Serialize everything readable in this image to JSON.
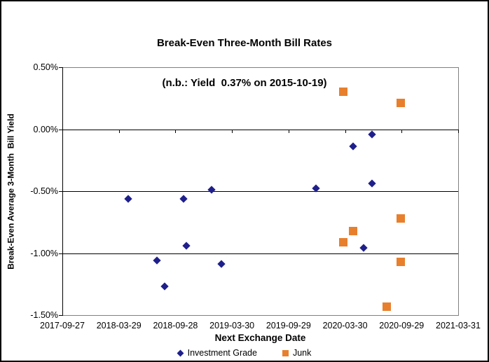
{
  "chart_data": {
    "type": "scatter",
    "title": "Break-Even Three-Month Bill Rates",
    "subtitle": "(n.b.: Yield  0.37% on 2015-10-19)",
    "x_axis": {
      "label": "Next Exchange Date",
      "range": [
        "2017-09-27",
        "2021-03-31"
      ],
      "ticks": [
        "2017-09-27",
        "2018-03-29",
        "2018-09-28",
        "2019-03-30",
        "2019-09-29",
        "2020-03-30",
        "2020-09-29",
        "2021-03-31"
      ]
    },
    "y_axis": {
      "label": "Break-Even Average 3-Month  Bill Yield",
      "unit": "percent",
      "min": -1.5,
      "max": 0.5,
      "ticks": [
        {
          "label": "0.50%",
          "value": 0.5
        },
        {
          "label": "0.00%",
          "value": 0.0
        },
        {
          "label": "-0.50%",
          "value": -0.5
        },
        {
          "label": "-1.00%",
          "value": -1.0
        },
        {
          "label": "-1.50%",
          "value": -1.5
        }
      ],
      "gridlines_at": [
        -0.5,
        -1.0
      ],
      "axis_crosses_at": 0.0
    },
    "grid": "horizontal",
    "legend_position": "bottom",
    "colors": {
      "investment_grade": "#1F1F8C",
      "junk": "#E87F2D",
      "gridline": "#000000",
      "plot_border": "#808080",
      "text": "#000000",
      "background": "#FFFFFF"
    },
    "series": [
      {
        "name": "Investment Grade",
        "marker": "diamond",
        "color": "#1F1F8C",
        "points": [
          {
            "x": "2018-04-27",
            "y": -0.56
          },
          {
            "x": "2018-07-31",
            "y": -1.06
          },
          {
            "x": "2018-08-25",
            "y": -1.27
          },
          {
            "x": "2018-10-24",
            "y": -0.56
          },
          {
            "x": "2018-11-03",
            "y": -0.94
          },
          {
            "x": "2019-01-24",
            "y": -0.49
          },
          {
            "x": "2019-02-23",
            "y": -1.09
          },
          {
            "x": "2019-12-27",
            "y": -0.48
          },
          {
            "x": "2020-04-24",
            "y": -0.14
          },
          {
            "x": "2020-05-30",
            "y": -0.96
          },
          {
            "x": "2020-06-25",
            "y": -0.04
          },
          {
            "x": "2020-06-25",
            "y": -0.44
          }
        ]
      },
      {
        "name": "Junk",
        "marker": "square",
        "color": "#E87F2D",
        "points": [
          {
            "x": "2020-03-25",
            "y": 0.3
          },
          {
            "x": "2020-03-25",
            "y": -0.91
          },
          {
            "x": "2020-04-26",
            "y": -0.82
          },
          {
            "x": "2020-08-11",
            "y": -1.43
          },
          {
            "x": "2020-09-27",
            "y": 0.21
          },
          {
            "x": "2020-09-27",
            "y": -0.72
          },
          {
            "x": "2020-09-27",
            "y": -1.07
          }
        ]
      }
    ]
  }
}
